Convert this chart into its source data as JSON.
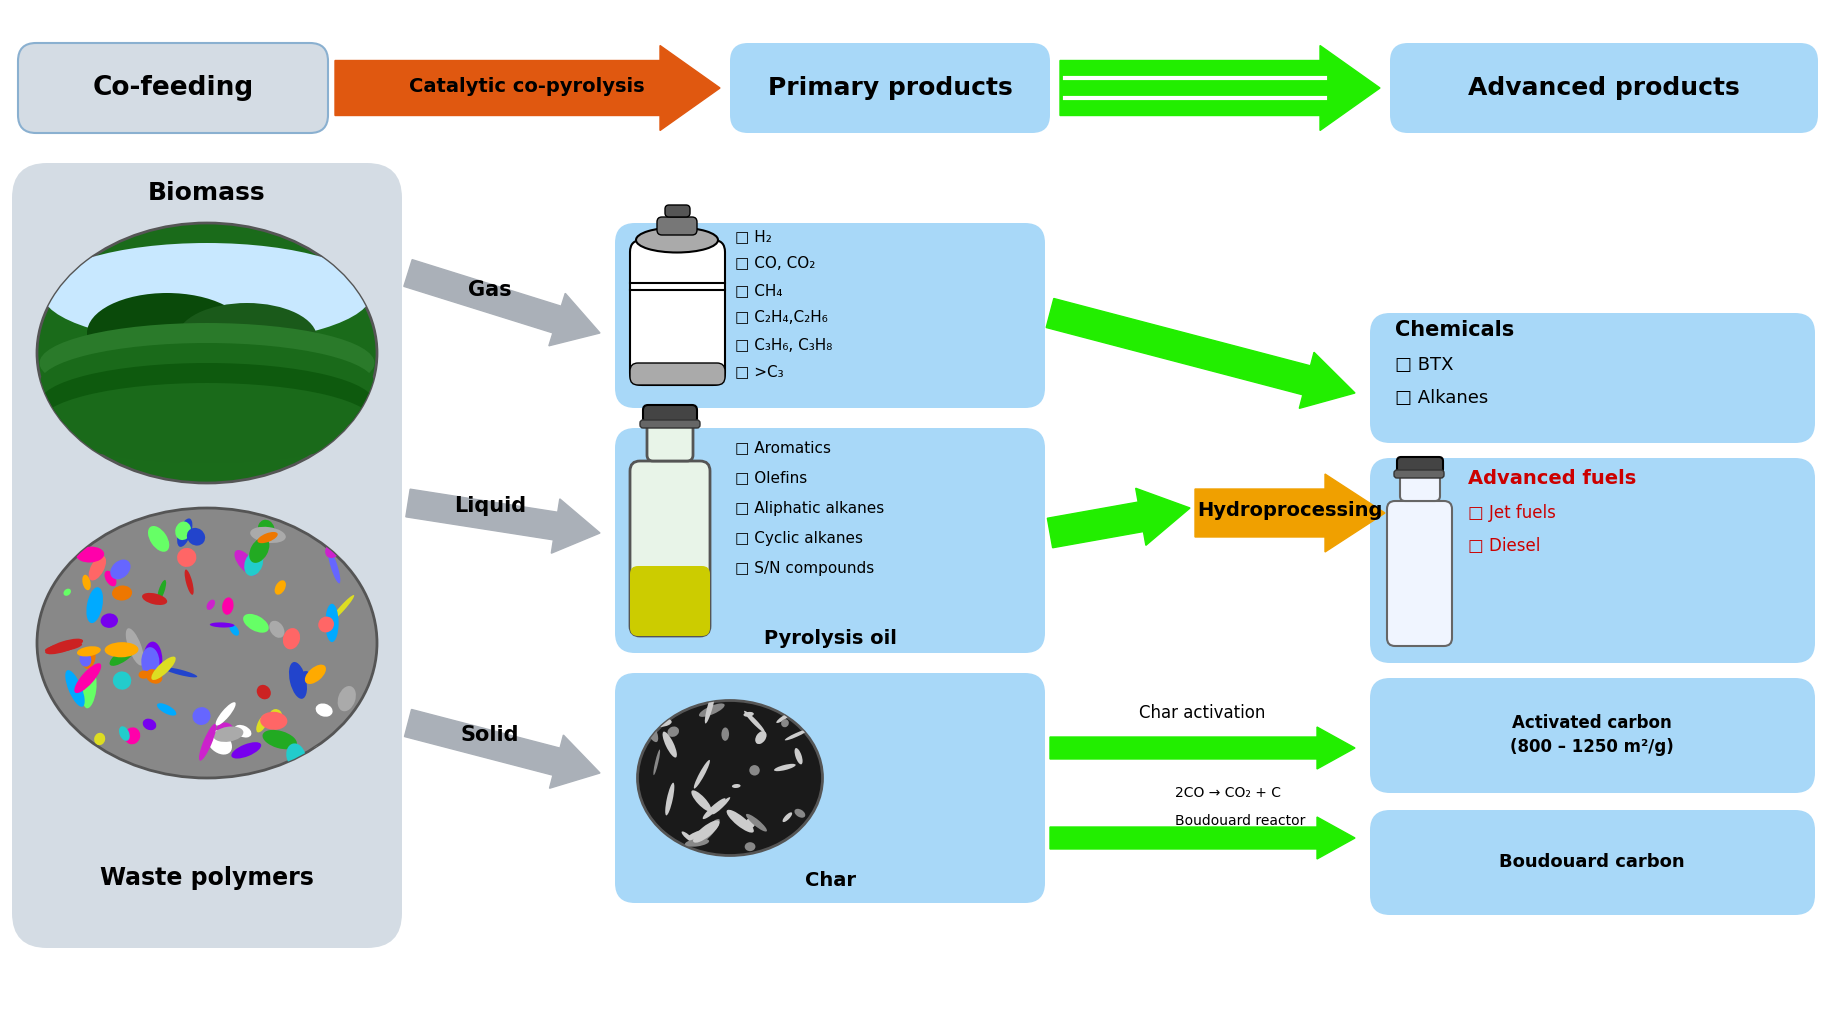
{
  "bg_color": "#ffffff",
  "light_blue_box": "#80c8f8",
  "light_blue_box2": "#a8d8f8",
  "light_gray_box": "#d4dce4",
  "green_color": "#22ee00",
  "orange_color": "#e05810",
  "amber_color": "#f0a000",
  "gray_arrow_color": "#aab0b8",
  "cofeeding_text": "Co-feeding",
  "catalytic_text": "Catalytic co-pyrolysis",
  "primary_text": "Primary products",
  "advanced_text": "Advanced products",
  "biomass_text": "Biomass",
  "waste_polymers_text": "Waste polymers",
  "gas_text": "Gas",
  "liquid_text": "Liquid",
  "solid_text": "Solid",
  "pyrolysis_oil_text": "Pyrolysis oil",
  "char_text": "Char",
  "chemicals_title": "Chemicals",
  "chemicals_items": [
    "BTX",
    "Alkanes"
  ],
  "advanced_fuels_title": "Advanced fuels",
  "advanced_fuels_items": [
    "Jet fuels",
    "Diesel"
  ],
  "activated_carbon_text": "Activated carbon\n(800 – 1250 m²/g)",
  "boudouard_carbon_text": "Boudouard carbon",
  "char_activation_text": "Char activation",
  "boudouard_reaction": "2CO → CO₂ + C",
  "boudouard_reactor": "Boudouard reactor",
  "gas_items": [
    "H₂",
    "CO, CO₂",
    "CH₄",
    "C₂H₄,C₂H₆",
    "C₃H₆, C₃H₈",
    ">C₃"
  ],
  "liquid_items": [
    "Aromatics",
    "Olefins",
    "Aliphatic alkanes",
    "Cyclic alkanes",
    "S/N compounds"
  ],
  "hydroprocessing_text": "Hydroprocessing"
}
